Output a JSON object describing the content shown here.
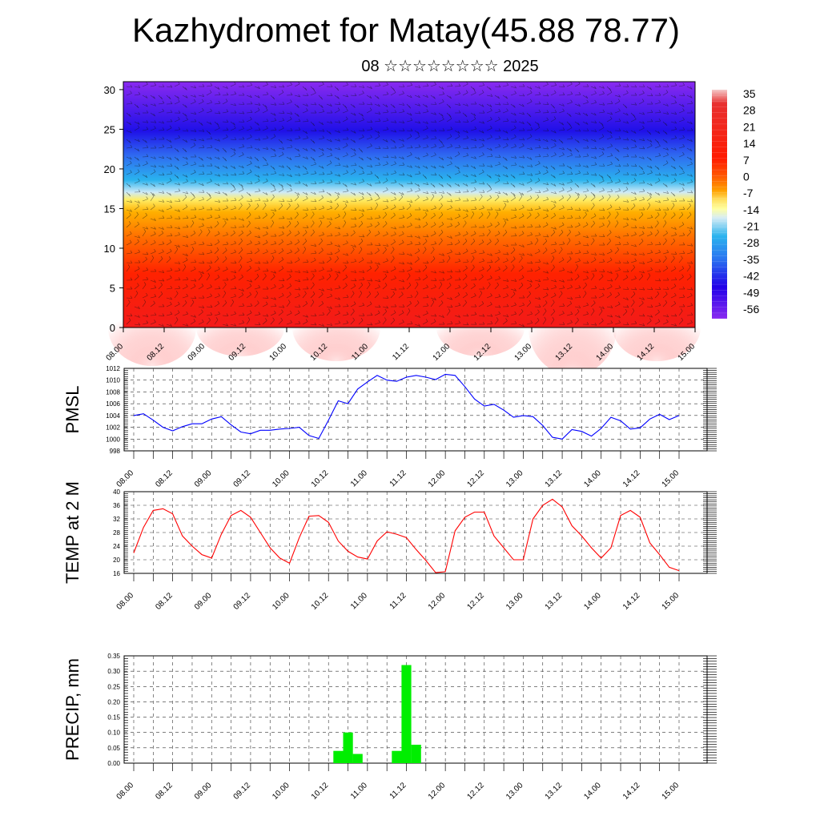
{
  "header": {
    "title": "Kazhydromet for Matay(45.88 78.77)",
    "subtitle": "08 ☆☆☆☆☆☆☆☆ 2025"
  },
  "colors": {
    "precip_bar": "#00ee00",
    "pmsl_line": "#0000ff",
    "temp_line": "#ff0000"
  },
  "chart_data": [
    {
      "type": "heatmap",
      "title": "",
      "xlabel": "",
      "ylabel": "",
      "time_ticks": [
        "08.00",
        "08.12",
        "09.00",
        "09.12",
        "10.00",
        "10.12",
        "11.00",
        "11.12",
        "12.00",
        "12.12",
        "13.00",
        "13.12",
        "14.00",
        "14.12",
        "15.00"
      ],
      "y_ticks": [
        0,
        5,
        10,
        15,
        20,
        25,
        30
      ],
      "ylim": [
        0,
        31
      ],
      "colorbar_labels": [
        "35",
        "28",
        "21",
        "14",
        "7",
        "0",
        "-7",
        "-14",
        "-21",
        "-28",
        "-35",
        "-42",
        "-49",
        "-56"
      ],
      "overlay": "wind barbs"
    },
    {
      "type": "line",
      "ylabel": "PMSL",
      "ylim": [
        998,
        1012
      ],
      "y_ticks": [
        998,
        1000,
        1002,
        1004,
        1006,
        1008,
        1010,
        1012
      ],
      "x_ticks": [
        "08.00",
        "08.12",
        "09.00",
        "09.12",
        "10.00",
        "10.12",
        "11.00",
        "11.12",
        "12.00",
        "12.12",
        "13.00",
        "13.12",
        "14.00",
        "14.12",
        "15.00"
      ],
      "x": [
        0,
        3,
        6,
        9,
        12,
        15,
        18,
        21,
        24,
        27,
        30,
        33,
        36,
        39,
        42,
        45,
        48,
        51,
        54,
        57,
        60,
        63,
        66,
        69,
        72,
        75,
        78,
        81,
        84,
        87,
        90,
        93,
        96,
        99,
        102,
        105,
        108,
        111,
        114,
        117,
        120,
        123,
        126,
        129,
        132,
        135,
        138,
        141,
        144,
        147,
        150,
        153,
        156,
        159,
        162,
        165,
        168
      ],
      "series": [
        {
          "values": [
            1004.0,
            1004.3,
            1003.2,
            1002.0,
            1001.4,
            1002.1,
            1002.6,
            1002.6,
            1003.4,
            1003.8,
            1002.4,
            1001.2,
            1000.9,
            1001.5,
            1001.5,
            1001.7,
            1001.8,
            1002.0,
            1000.6,
            1000.1,
            1003.2,
            1006.5,
            1006.0,
            1008.5,
            1009.7,
            1010.8,
            1010.0,
            1009.8,
            1010.5,
            1010.8,
            1010.5,
            1010.1,
            1011.0,
            1010.8,
            1008.9,
            1006.8,
            1005.6,
            1005.9,
            1004.9,
            1003.7,
            1004.0,
            1003.8,
            1002.3,
            1000.3,
            1000.0,
            1001.6,
            1001.3,
            1000.5,
            1001.8,
            1003.7,
            1003.1,
            1001.7,
            1001.9,
            1003.4,
            1004.2,
            1003.3,
            1004.0
          ]
        }
      ]
    },
    {
      "type": "line",
      "ylabel": "TEMP at 2 M",
      "ylim": [
        16,
        40
      ],
      "y_ticks": [
        16,
        20,
        24,
        28,
        32,
        36,
        40
      ],
      "x_ticks": [
        "08.00",
        "08.12",
        "09.00",
        "09.12",
        "10.00",
        "10.12",
        "11.00",
        "11.12",
        "12.00",
        "12.12",
        "13.00",
        "13.12",
        "14.00",
        "14.12",
        "15.00"
      ],
      "x": [
        0,
        3,
        6,
        9,
        12,
        15,
        18,
        21,
        24,
        27,
        30,
        33,
        36,
        39,
        42,
        45,
        48,
        51,
        54,
        57,
        60,
        63,
        66,
        69,
        72,
        75,
        78,
        81,
        84,
        87,
        90,
        93,
        96,
        99,
        102,
        105,
        108,
        111,
        114,
        117,
        120,
        123,
        126,
        129,
        132,
        135,
        138,
        141,
        144,
        147,
        150,
        153,
        156,
        159,
        162,
        165,
        168
      ],
      "series": [
        {
          "values": [
            22.0,
            29.5,
            34.5,
            35.0,
            33.5,
            27.0,
            24.0,
            21.5,
            20.5,
            27.5,
            33.0,
            34.5,
            32.5,
            28.0,
            23.5,
            20.5,
            19.0,
            26.5,
            32.8,
            33.0,
            31.0,
            25.5,
            22.5,
            20.8,
            20.2,
            25.5,
            28.2,
            27.5,
            26.5,
            23.0,
            19.8,
            16.2,
            16.5,
            28.5,
            32.5,
            34.0,
            34.0,
            27.0,
            23.5,
            20.0,
            20.0,
            32.0,
            36.0,
            37.8,
            35.5,
            30.0,
            27.0,
            23.5,
            20.5,
            23.5,
            33.0,
            34.5,
            32.5,
            25.0,
            21.5,
            17.8,
            16.8
          ]
        }
      ]
    },
    {
      "type": "bar",
      "ylabel": "PRECIP, mm",
      "ylim": [
        0,
        0.35
      ],
      "y_ticks": [
        "0.00",
        "0.05",
        "0.10",
        "0.15",
        "0.20",
        "0.25",
        "0.30",
        "0.35"
      ],
      "x_ticks": [
        "08.00",
        "08.12",
        "09.00",
        "09.12",
        "10.00",
        "10.12",
        "11.00",
        "11.12",
        "12.00",
        "12.12",
        "13.00",
        "13.12",
        "14.00",
        "14.12",
        "15.00"
      ],
      "bars": [
        {
          "x": 63,
          "value": 0.04
        },
        {
          "x": 66,
          "value": 0.1
        },
        {
          "x": 69,
          "value": 0.03
        },
        {
          "x": 81,
          "value": 0.04
        },
        {
          "x": 84,
          "value": 0.32
        },
        {
          "x": 87,
          "value": 0.06
        }
      ]
    }
  ]
}
